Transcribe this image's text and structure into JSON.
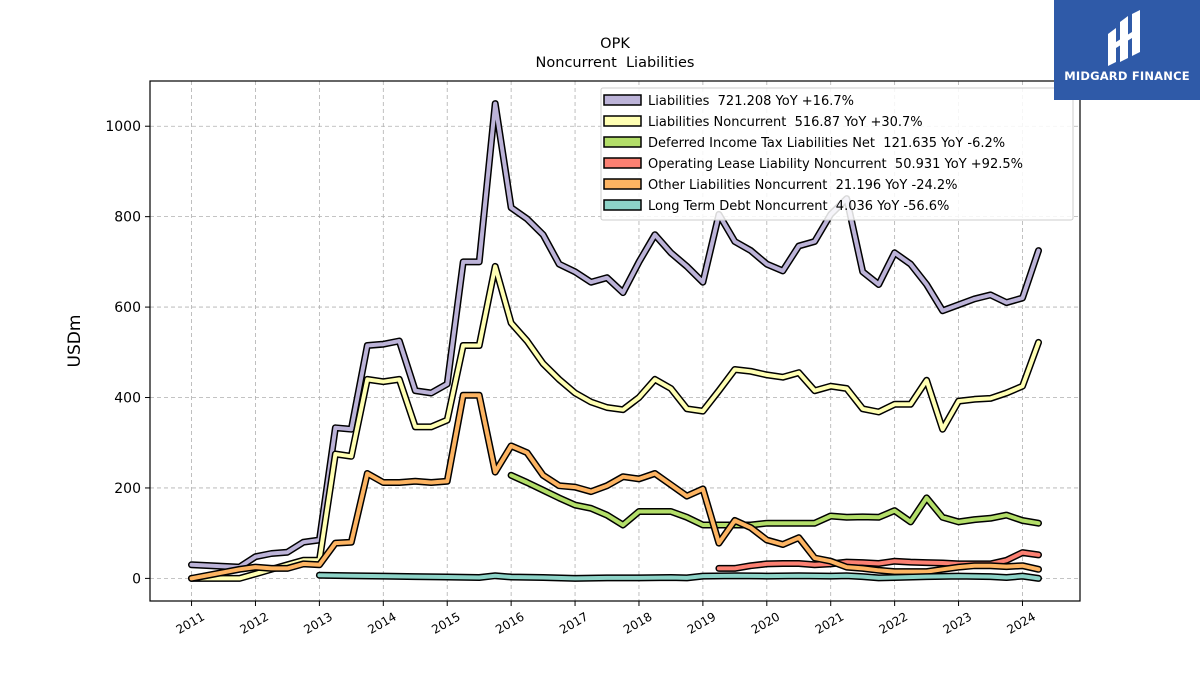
{
  "logo": {
    "text": "MIDGARD FINANCE",
    "mark": "midgard-logo-icon",
    "color": "#2f5aa8"
  },
  "chart_data": {
    "type": "line",
    "title": "OPK",
    "subtitle": "Noncurrent  Liabilities",
    "xlabel": "",
    "ylabel": "USDm",
    "xlim": [
      2010.35,
      2024.9
    ],
    "ylim": [
      -50,
      1100
    ],
    "yticks": [
      0,
      200,
      400,
      600,
      800,
      1000
    ],
    "xticks": [
      "2011",
      "2012",
      "2013",
      "2014",
      "2015",
      "2016",
      "2017",
      "2018",
      "2019",
      "2020",
      "2021",
      "2022",
      "2023",
      "2024"
    ],
    "grid": true,
    "legend_position": "top-right",
    "series": [
      {
        "name": "Liabilities",
        "legend": "Liabilities  721.208 YoY +16.7%",
        "color": "#bcb3d8",
        "points": [
          [
            2011.0,
            30
          ],
          [
            2011.75,
            25
          ],
          [
            2012.0,
            48
          ],
          [
            2012.25,
            55
          ],
          [
            2012.5,
            58
          ],
          [
            2012.75,
            80
          ],
          [
            2013.0,
            85
          ],
          [
            2013.25,
            333
          ],
          [
            2013.5,
            330
          ],
          [
            2013.75,
            515
          ],
          [
            2014.0,
            518
          ],
          [
            2014.25,
            525
          ],
          [
            2014.5,
            415
          ],
          [
            2014.75,
            410
          ],
          [
            2015.0,
            430
          ],
          [
            2015.25,
            700
          ],
          [
            2015.5,
            700
          ],
          [
            2015.75,
            1050
          ],
          [
            2016.0,
            820
          ],
          [
            2016.25,
            795
          ],
          [
            2016.5,
            760
          ],
          [
            2016.75,
            695
          ],
          [
            2017.0,
            678
          ],
          [
            2017.25,
            655
          ],
          [
            2017.5,
            665
          ],
          [
            2017.75,
            632
          ],
          [
            2018.0,
            700
          ],
          [
            2018.25,
            760
          ],
          [
            2018.5,
            720
          ],
          [
            2018.75,
            690
          ],
          [
            2019.0,
            655
          ],
          [
            2019.25,
            805
          ],
          [
            2019.5,
            745
          ],
          [
            2019.75,
            725
          ],
          [
            2020.0,
            695
          ],
          [
            2020.25,
            680
          ],
          [
            2020.5,
            735
          ],
          [
            2020.75,
            745
          ],
          [
            2021.0,
            805
          ],
          [
            2021.25,
            840
          ],
          [
            2021.5,
            678
          ],
          [
            2021.75,
            650
          ],
          [
            2022.0,
            720
          ],
          [
            2022.25,
            695
          ],
          [
            2022.5,
            650
          ],
          [
            2022.75,
            592
          ],
          [
            2023.0,
            605
          ],
          [
            2023.25,
            618
          ],
          [
            2023.5,
            627
          ],
          [
            2023.75,
            610
          ],
          [
            2024.0,
            620
          ],
          [
            2024.25,
            725
          ]
        ]
      },
      {
        "name": "Liabilities Noncurrent",
        "legend": "Liabilities Noncurrent  516.87 YoY +30.7%",
        "color": "#ffffb3",
        "points": [
          [
            2011.0,
            0
          ],
          [
            2011.75,
            0
          ],
          [
            2012.0,
            10
          ],
          [
            2012.25,
            20
          ],
          [
            2012.5,
            30
          ],
          [
            2012.75,
            40
          ],
          [
            2013.0,
            40
          ],
          [
            2013.25,
            275
          ],
          [
            2013.5,
            270
          ],
          [
            2013.75,
            440
          ],
          [
            2014.0,
            435
          ],
          [
            2014.25,
            440
          ],
          [
            2014.5,
            335
          ],
          [
            2014.75,
            335
          ],
          [
            2015.0,
            350
          ],
          [
            2015.25,
            515
          ],
          [
            2015.5,
            515
          ],
          [
            2015.75,
            690
          ],
          [
            2016.0,
            565
          ],
          [
            2016.25,
            525
          ],
          [
            2016.5,
            475
          ],
          [
            2016.75,
            440
          ],
          [
            2017.0,
            410
          ],
          [
            2017.25,
            390
          ],
          [
            2017.5,
            378
          ],
          [
            2017.75,
            373
          ],
          [
            2018.0,
            400
          ],
          [
            2018.25,
            440
          ],
          [
            2018.5,
            420
          ],
          [
            2018.75,
            375
          ],
          [
            2019.0,
            370
          ],
          [
            2019.25,
            415
          ],
          [
            2019.5,
            462
          ],
          [
            2019.75,
            458
          ],
          [
            2020.0,
            450
          ],
          [
            2020.25,
            445
          ],
          [
            2020.5,
            455
          ],
          [
            2020.75,
            415
          ],
          [
            2021.0,
            425
          ],
          [
            2021.25,
            420
          ],
          [
            2021.5,
            375
          ],
          [
            2021.75,
            368
          ],
          [
            2022.0,
            385
          ],
          [
            2022.25,
            385
          ],
          [
            2022.5,
            438
          ],
          [
            2022.75,
            330
          ],
          [
            2023.0,
            392
          ],
          [
            2023.25,
            396
          ],
          [
            2023.5,
            398
          ],
          [
            2023.75,
            410
          ],
          [
            2024.0,
            425
          ],
          [
            2024.25,
            522
          ]
        ]
      },
      {
        "name": "Deferred Income Tax Liabilities Net",
        "legend": "Deferred Income Tax Liabilities Net  121.635 YoY -6.2%",
        "color": "#b3de69",
        "points": [
          [
            2016.0,
            228
          ],
          [
            2016.25,
            212
          ],
          [
            2016.5,
            195
          ],
          [
            2016.75,
            178
          ],
          [
            2017.0,
            162
          ],
          [
            2017.25,
            155
          ],
          [
            2017.5,
            140
          ],
          [
            2017.75,
            118
          ],
          [
            2018.0,
            148
          ],
          [
            2018.25,
            148
          ],
          [
            2018.5,
            148
          ],
          [
            2018.75,
            135
          ],
          [
            2019.0,
            118
          ],
          [
            2019.25,
            118
          ],
          [
            2019.5,
            118
          ],
          [
            2019.75,
            118
          ],
          [
            2020.0,
            122
          ],
          [
            2020.25,
            122
          ],
          [
            2020.5,
            122
          ],
          [
            2020.75,
            122
          ],
          [
            2021.0,
            138
          ],
          [
            2021.25,
            135
          ],
          [
            2021.5,
            136
          ],
          [
            2021.75,
            135
          ],
          [
            2022.0,
            150
          ],
          [
            2022.25,
            125
          ],
          [
            2022.5,
            178
          ],
          [
            2022.75,
            135
          ],
          [
            2023.0,
            125
          ],
          [
            2023.25,
            130
          ],
          [
            2023.5,
            133
          ],
          [
            2023.75,
            140
          ],
          [
            2024.0,
            128
          ],
          [
            2024.25,
            122
          ]
        ]
      },
      {
        "name": "Operating Lease Liability Noncurrent",
        "legend": "Operating Lease Liability Noncurrent  50.931 YoY +92.5%",
        "color": "#fb8072",
        "points": [
          [
            2019.25,
            22
          ],
          [
            2019.5,
            22
          ],
          [
            2019.75,
            28
          ],
          [
            2020.0,
            32
          ],
          [
            2020.25,
            33
          ],
          [
            2020.5,
            33
          ],
          [
            2020.75,
            30
          ],
          [
            2021.0,
            32
          ],
          [
            2021.25,
            36
          ],
          [
            2021.5,
            35
          ],
          [
            2021.75,
            33
          ],
          [
            2022.0,
            38
          ],
          [
            2022.25,
            36
          ],
          [
            2022.5,
            35
          ],
          [
            2022.75,
            34
          ],
          [
            2023.0,
            32
          ],
          [
            2023.25,
            32
          ],
          [
            2023.5,
            32
          ],
          [
            2023.75,
            40
          ],
          [
            2024.0,
            57
          ],
          [
            2024.25,
            52
          ]
        ]
      },
      {
        "name": "Other Liabilities Noncurrent",
        "legend": "Other Liabilities Noncurrent  21.196 YoY -24.2%",
        "color": "#fdb462",
        "points": [
          [
            2011.0,
            0
          ],
          [
            2011.75,
            20
          ],
          [
            2012.0,
            25
          ],
          [
            2012.25,
            22
          ],
          [
            2012.5,
            22
          ],
          [
            2012.75,
            32
          ],
          [
            2013.0,
            30
          ],
          [
            2013.25,
            78
          ],
          [
            2013.5,
            80
          ],
          [
            2013.75,
            232
          ],
          [
            2014.0,
            212
          ],
          [
            2014.25,
            212
          ],
          [
            2014.5,
            215
          ],
          [
            2014.75,
            212
          ],
          [
            2015.0,
            215
          ],
          [
            2015.25,
            405
          ],
          [
            2015.5,
            405
          ],
          [
            2015.75,
            235
          ],
          [
            2016.0,
            293
          ],
          [
            2016.25,
            278
          ],
          [
            2016.5,
            228
          ],
          [
            2016.75,
            205
          ],
          [
            2017.0,
            202
          ],
          [
            2017.25,
            192
          ],
          [
            2017.5,
            205
          ],
          [
            2017.75,
            225
          ],
          [
            2018.0,
            220
          ],
          [
            2018.25,
            232
          ],
          [
            2018.5,
            207
          ],
          [
            2018.75,
            182
          ],
          [
            2019.0,
            198
          ],
          [
            2019.25,
            78
          ],
          [
            2019.5,
            128
          ],
          [
            2019.75,
            112
          ],
          [
            2020.0,
            85
          ],
          [
            2020.25,
            75
          ],
          [
            2020.5,
            90
          ],
          [
            2020.75,
            45
          ],
          [
            2021.0,
            38
          ],
          [
            2021.25,
            25
          ],
          [
            2021.5,
            22
          ],
          [
            2021.75,
            18
          ],
          [
            2022.0,
            15
          ],
          [
            2022.25,
            15
          ],
          [
            2022.5,
            15
          ],
          [
            2022.75,
            20
          ],
          [
            2023.0,
            25
          ],
          [
            2023.25,
            28
          ],
          [
            2023.5,
            28
          ],
          [
            2023.75,
            26
          ],
          [
            2024.0,
            28
          ],
          [
            2024.25,
            20
          ]
        ]
      },
      {
        "name": "Long Term Debt Noncurrent",
        "legend": "Long Term Debt Noncurrent  4.036 YoY -56.6%",
        "color": "#8dd3c7",
        "points": [
          [
            2013.0,
            7
          ],
          [
            2013.5,
            6
          ],
          [
            2014.0,
            5
          ],
          [
            2014.5,
            4
          ],
          [
            2015.0,
            3
          ],
          [
            2015.5,
            2
          ],
          [
            2015.75,
            6
          ],
          [
            2016.0,
            3
          ],
          [
            2016.5,
            2
          ],
          [
            2017.0,
            0
          ],
          [
            2017.5,
            1
          ],
          [
            2018.0,
            1
          ],
          [
            2018.5,
            2
          ],
          [
            2018.75,
            1
          ],
          [
            2019.0,
            5
          ],
          [
            2019.5,
            6
          ],
          [
            2020.0,
            5
          ],
          [
            2020.5,
            6
          ],
          [
            2021.0,
            5
          ],
          [
            2021.25,
            6
          ],
          [
            2021.5,
            4
          ],
          [
            2021.75,
            1
          ],
          [
            2022.0,
            2
          ],
          [
            2022.5,
            4
          ],
          [
            2023.0,
            5
          ],
          [
            2023.5,
            4
          ],
          [
            2023.75,
            2
          ],
          [
            2024.0,
            5
          ],
          [
            2024.25,
            0
          ]
        ]
      }
    ]
  }
}
